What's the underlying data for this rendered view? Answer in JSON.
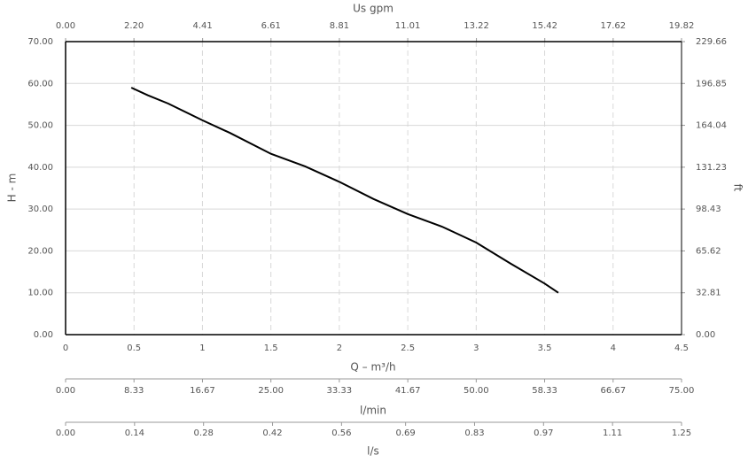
{
  "chart_data": {
    "type": "line",
    "xlabel": "Q – m³/h",
    "ylabel": "H - m",
    "y2label": "ft",
    "xlim": [
      0,
      4.5
    ],
    "xticks": [
      0,
      0.5,
      1,
      1.5,
      2,
      2.5,
      3,
      3.5,
      4,
      4.5
    ],
    "ylim": [
      0,
      70
    ],
    "yticks": [
      {
        "value": 0,
        "label": "0.00"
      },
      {
        "value": 10,
        "label": "10.00"
      },
      {
        "value": 20,
        "label": "20.00"
      },
      {
        "value": 30,
        "label": "30.00"
      },
      {
        "value": 40,
        "label": "40.00"
      },
      {
        "value": 50,
        "label": "50.00"
      },
      {
        "value": 60,
        "label": "60.00"
      },
      {
        "value": 70,
        "label": "70.00"
      }
    ],
    "y2lim": [
      0,
      229.66
    ],
    "y2ticks": [
      {
        "value": 0,
        "label": "0.00"
      },
      32.81,
      65.62,
      98.43,
      131.23,
      164.04,
      196.85,
      229.66
    ],
    "top_axis": {
      "label": "Us gpm",
      "xlim": [
        0,
        19.82
      ],
      "xticks": [
        {
          "value": 0,
          "label": "0.00"
        },
        {
          "value": 2.2,
          "label": "2.20"
        },
        4.41,
        6.61,
        8.81,
        11.01,
        13.22,
        15.42,
        17.62,
        19.82
      ]
    },
    "bottom_axes": [
      {
        "label": "l/min",
        "xlim": [
          0,
          75
        ],
        "xticks": [
          {
            "value": 0,
            "label": "0.00"
          },
          8.33,
          16.67,
          {
            "value": 25,
            "label": "25.00"
          },
          33.33,
          41.67,
          {
            "value": 50,
            "label": "50.00"
          },
          58.33,
          66.67,
          {
            "value": 75,
            "label": "75.00"
          }
        ]
      },
      {
        "label": "l/s",
        "xlim": [
          0,
          1.25
        ],
        "xticks": [
          {
            "value": 0,
            "label": "0.00"
          },
          0.14,
          0.28,
          0.42,
          0.56,
          0.69,
          0.83,
          0.97,
          1.11,
          1.25
        ]
      }
    ],
    "grid": true,
    "series": [
      {
        "color": "#000000",
        "x": [
          0.48,
          0.6,
          0.75,
          1.0,
          1.2,
          1.5,
          1.75,
          2.0,
          2.25,
          2.5,
          2.75,
          3.0,
          3.25,
          3.5,
          3.6
        ],
        "values": [
          59,
          57.2,
          55.2,
          51.2,
          48.2,
          43.2,
          40.2,
          36.5,
          32.4,
          28.8,
          25.8,
          22.0,
          17.0,
          12.2,
          10.0
        ]
      }
    ]
  }
}
